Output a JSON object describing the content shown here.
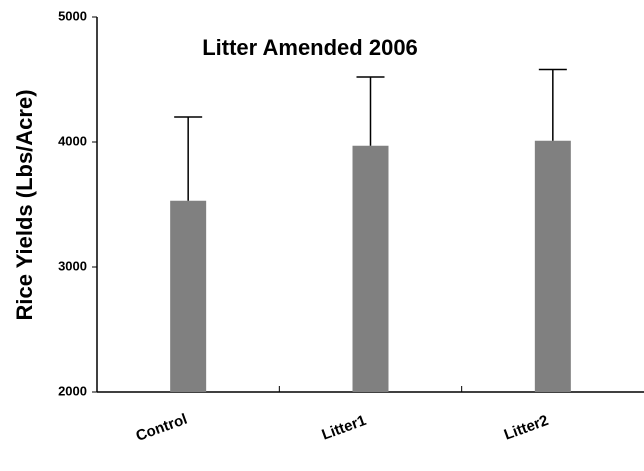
{
  "chart_data": {
    "type": "bar",
    "title": "Litter Amended 2006",
    "y_label": "Rice Yields (Lbs/Acre)",
    "categories": [
      "Control",
      "Litter1",
      "Litter2"
    ],
    "values": [
      3530,
      3970,
      4010
    ],
    "errors": [
      670,
      550,
      570
    ],
    "color": "#808080",
    "ylim": [
      2000,
      5000
    ],
    "yticks": [
      2000,
      3000,
      4000,
      5000
    ]
  }
}
